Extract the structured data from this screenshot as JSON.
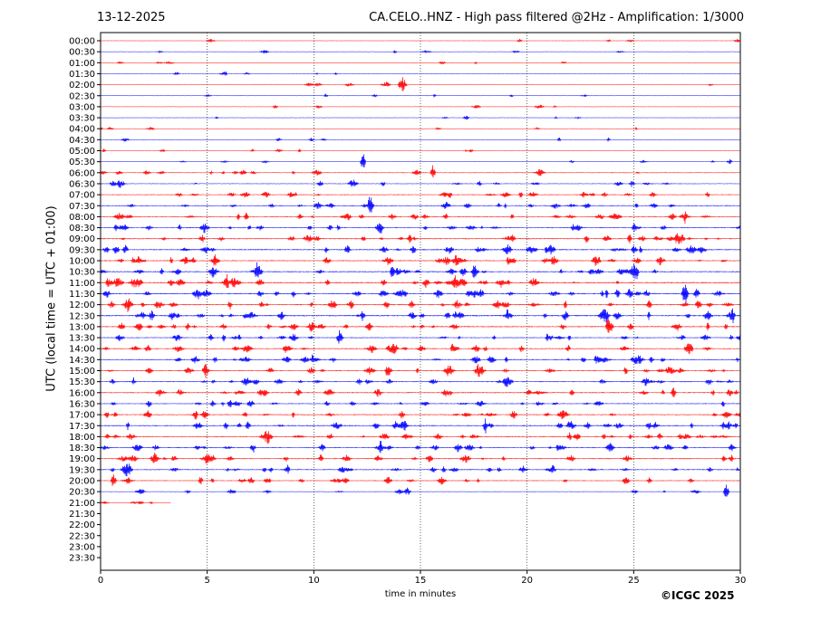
{
  "header": {
    "date": "13-12-2025",
    "title": "CA.CELO..HNZ - High pass filtered @2Hz - Amplification: 1/3000"
  },
  "footer": {
    "copyright": "©ICGC 2025"
  },
  "chart_data": {
    "type": "line",
    "title": "CA.CELO..HNZ - High pass filtered @2Hz - Amplification: 1/3000",
    "xlabel": "time in minutes",
    "ylabel": "UTC (local time = UTC + 01:00)",
    "xlim": [
      0,
      30
    ],
    "x_ticks": [
      "0",
      "5",
      "10",
      "15",
      "20",
      "25",
      "30"
    ],
    "x_tick_values": [
      0,
      5,
      10,
      15,
      20,
      25,
      30
    ],
    "grid": "vertical dotted lines at 5-minute intervals",
    "row_labels": [
      "00:00",
      "00:30",
      "01:00",
      "01:30",
      "02:00",
      "02:30",
      "03:00",
      "03:30",
      "04:00",
      "04:30",
      "05:00",
      "05:30",
      "06:00",
      "06:30",
      "07:00",
      "07:30",
      "08:00",
      "08:30",
      "09:00",
      "09:30",
      "10:00",
      "10:30",
      "11:00",
      "11:30",
      "12:00",
      "12:30",
      "13:00",
      "13:30",
      "14:00",
      "14:30",
      "15:00",
      "15:30",
      "16:00",
      "16:30",
      "17:00",
      "17:30",
      "18:00",
      "18:30",
      "19:00",
      "19:30",
      "20:00",
      "20:30",
      "21:00",
      "21:30",
      "22:00",
      "22:30",
      "23:00",
      "23:30"
    ],
    "series_colors": [
      "#ff0000",
      "#0000ff"
    ],
    "activity": [
      0.05,
      0.08,
      0.08,
      0.07,
      0.08,
      0.08,
      0.06,
      0.06,
      0.07,
      0.08,
      0.1,
      0.1,
      0.3,
      0.35,
      0.45,
      0.5,
      0.55,
      0.6,
      0.65,
      0.7,
      0.65,
      0.7,
      0.75,
      0.75,
      0.75,
      0.8,
      0.7,
      0.55,
      0.55,
      0.6,
      0.6,
      0.6,
      0.6,
      0.55,
      0.6,
      0.65,
      0.6,
      0.6,
      0.6,
      0.6,
      0.5,
      0.2,
      0.02,
      0,
      0,
      0,
      0,
      0
    ],
    "row_end_minutes": [
      30,
      30,
      30,
      30,
      30,
      30,
      30,
      30,
      30,
      30,
      30,
      30,
      30,
      30,
      30,
      30,
      30,
      30,
      30,
      30,
      30,
      30,
      30,
      30,
      30,
      30,
      30,
      30,
      30,
      30,
      30,
      30,
      30,
      30,
      30,
      30,
      30,
      30,
      30,
      30,
      30,
      30,
      3.3,
      0,
      0,
      0,
      0,
      0
    ]
  }
}
